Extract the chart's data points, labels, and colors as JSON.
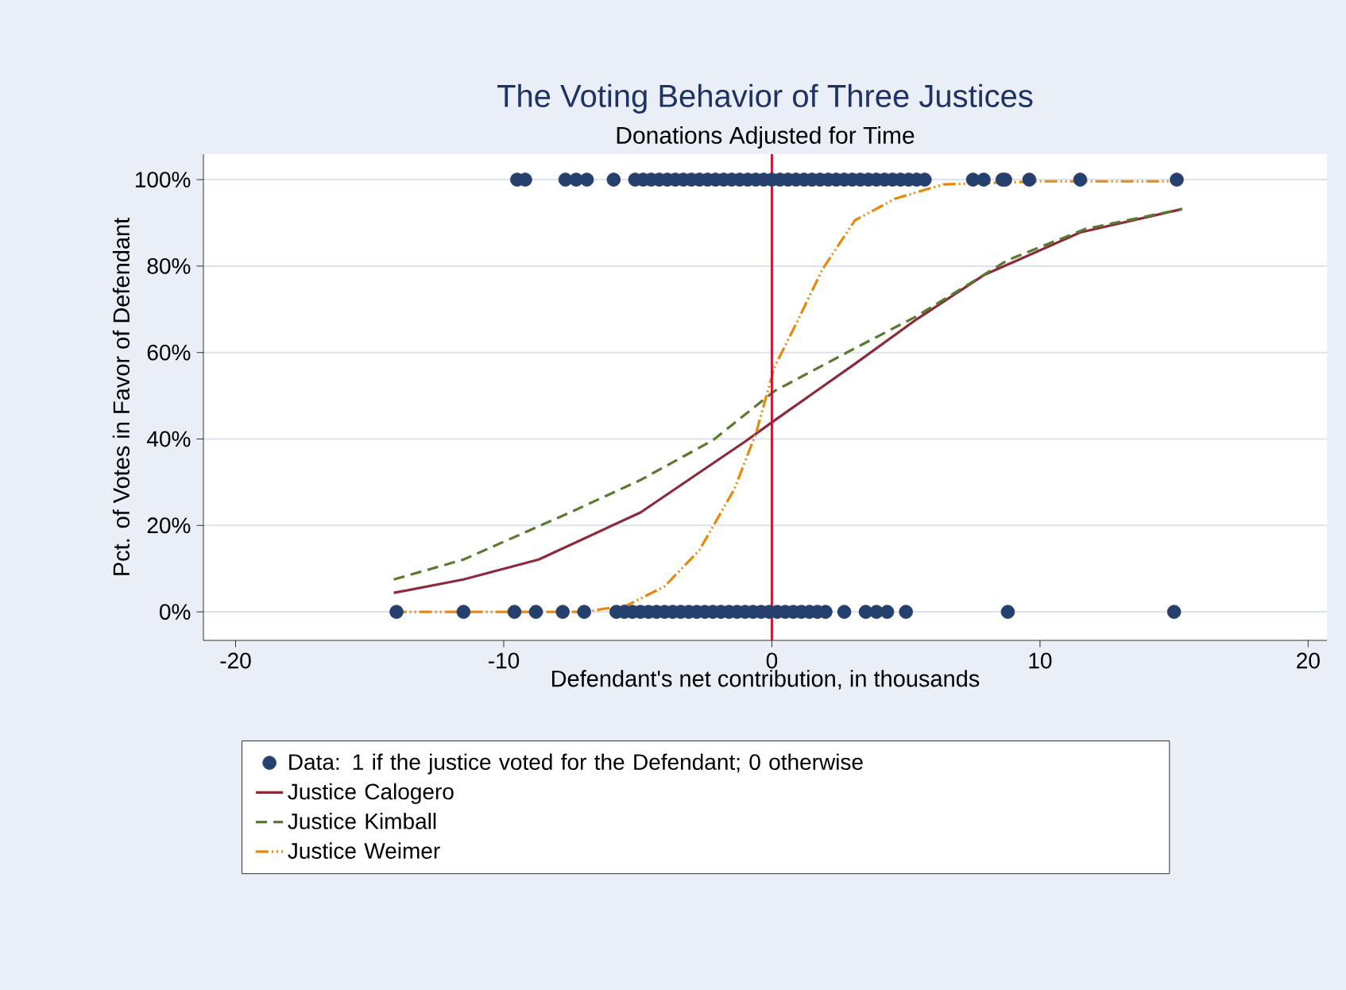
{
  "chart_data": {
    "type": "line",
    "title": "The Voting Behavior of Three Justices",
    "subtitle": "Donations Adjusted for Time",
    "xlabel": "Defendant's net contribution, in thousands",
    "ylabel": "Pct. of Votes in Favor of Defendant",
    "xlim": [
      -21.2,
      20.7
    ],
    "ylim": [
      -6.6,
      105.9
    ],
    "xticks": [
      -20,
      -10,
      0,
      10,
      20
    ],
    "yticks": [
      {
        "value": 0,
        "label": "0%"
      },
      {
        "value": 20,
        "label": "20%"
      },
      {
        "value": 40,
        "label": "40%"
      },
      {
        "value": 60,
        "label": "60%"
      },
      {
        "value": 80,
        "label": "80%"
      },
      {
        "value": 100,
        "label": "100%"
      }
    ],
    "grid": "y",
    "legend": "bottom",
    "ref_lines": [
      {
        "axis": "x",
        "value": 0,
        "color": "#c8102e"
      }
    ],
    "series": [
      {
        "name": "Data: 1 if the justice voted for the Defendant; 0 otherwise",
        "type": "scatter",
        "marker": "circle",
        "color": "#26406e",
        "x": [
          -9.5,
          -9.2,
          -7.7,
          -7.3,
          -6.9,
          -5.9,
          -5.1,
          -4.8,
          -4.5,
          -4.2,
          -3.9,
          -3.6,
          -3.3,
          -3.0,
          -2.7,
          -2.4,
          -2.1,
          -1.8,
          -1.5,
          -1.2,
          -0.9,
          -0.6,
          -0.3,
          0.0,
          0.3,
          0.6,
          0.9,
          1.2,
          1.5,
          1.8,
          2.1,
          2.4,
          2.7,
          3.0,
          3.3,
          3.6,
          3.9,
          4.2,
          4.5,
          4.8,
          5.1,
          5.4,
          5.7,
          7.5,
          7.9,
          8.6,
          8.7,
          9.6,
          11.5,
          15.1,
          -14.0,
          -11.5,
          -9.6,
          -8.8,
          -7.8,
          -7.0,
          -5.8,
          -5.5,
          -5.2,
          -4.9,
          -4.6,
          -4.3,
          -4.0,
          -3.7,
          -3.4,
          -3.1,
          -2.8,
          -2.5,
          -2.2,
          -1.9,
          -1.6,
          -1.3,
          -1.0,
          -0.7,
          -0.4,
          -0.1,
          0.2,
          0.5,
          0.8,
          1.1,
          1.4,
          1.7,
          2.0,
          2.7,
          3.5,
          3.9,
          4.3,
          5.0,
          8.8,
          15.0
        ],
        "values": [
          100,
          100,
          100,
          100,
          100,
          100,
          100,
          100,
          100,
          100,
          100,
          100,
          100,
          100,
          100,
          100,
          100,
          100,
          100,
          100,
          100,
          100,
          100,
          100,
          100,
          100,
          100,
          100,
          100,
          100,
          100,
          100,
          100,
          100,
          100,
          100,
          100,
          100,
          100,
          100,
          100,
          100,
          100,
          100,
          100,
          100,
          100,
          100,
          100,
          100,
          0,
          0,
          0,
          0,
          0,
          0,
          0,
          0,
          0,
          0,
          0,
          0,
          0,
          0,
          0,
          0,
          0,
          0,
          0,
          0,
          0,
          0,
          0,
          0,
          0,
          0,
          0,
          0,
          0,
          0,
          0,
          0,
          0,
          0,
          0,
          0,
          0,
          0,
          0,
          0
        ]
      },
      {
        "name": "Justice Calogero",
        "line_style": "solid",
        "marker": "none",
        "color": "#8c2a3c",
        "x": [
          -14.1,
          -11.5,
          -8.7,
          -4.9,
          -1.0,
          0.1,
          3.1,
          5.4,
          7.9,
          11.5,
          15.3
        ],
        "values": [
          4.4,
          7.5,
          12.1,
          23.0,
          39.4,
          44.3,
          57.4,
          67.7,
          77.9,
          87.8,
          93.2
        ]
      },
      {
        "name": "Justice Kimball",
        "line_style": "dashed",
        "marker": "none",
        "color": "#5a7a2e",
        "x": [
          -14.1,
          -11.5,
          -7.6,
          -4.9,
          -2.2,
          0.1,
          3.1,
          5.4,
          8.8,
          11.7,
          15.3
        ],
        "values": [
          7.5,
          12.1,
          22.8,
          30.5,
          39.7,
          51.1,
          61.0,
          68.4,
          81.4,
          88.6,
          93.2
        ]
      },
      {
        "name": "Justice Weimer",
        "line_style": "dotted",
        "marker": "none",
        "color": "#e8890c",
        "x": [
          -14.1,
          -7.0,
          -5.4,
          -4.0,
          -2.7,
          -1.4,
          -0.6,
          0.1,
          0.9,
          1.9,
          3.1,
          4.6,
          6.4,
          10.0,
          15.3
        ],
        "values": [
          0,
          0,
          1.5,
          5.9,
          14.3,
          28.4,
          41.2,
          56.7,
          66.6,
          79.4,
          90.6,
          95.6,
          98.9,
          99.6,
          99.6
        ]
      }
    ]
  }
}
